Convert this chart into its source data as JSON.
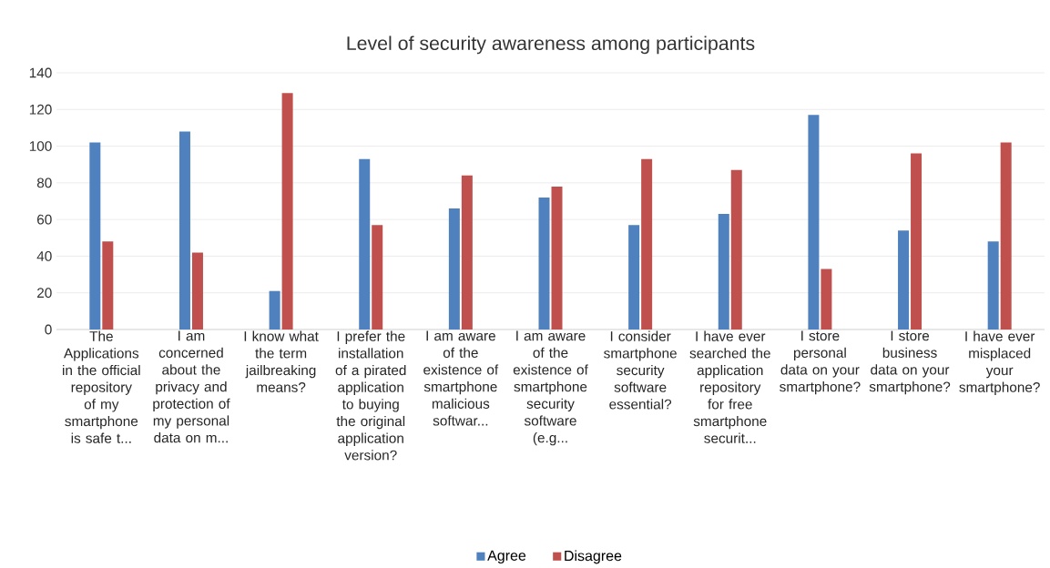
{
  "chart_data": {
    "type": "bar",
    "title": "Level of security awareness among participants",
    "categories": [
      "The Applications in the official repository of my smartphone is safe t...",
      "I am concerned about the privacy and protection of my personal data on m...",
      "I know what the term jailbreaking means?",
      "I prefer the installation of a pirated application to buying the original application version?",
      "I am aware of the existence of smartphone malicious softwar...",
      "I am aware of the existence of smartphone security software (e.g...",
      "I consider smartphone security software essential?",
      "I have ever searched the application repository for free smartphone securit...",
      "I store personal data on your smartphone?",
      "I store business data on your smartphone?",
      "I have ever misplaced your smartphone?"
    ],
    "series": [
      {
        "name": "Agree",
        "color": "#4e81bd",
        "values": [
          102,
          108,
          21,
          93,
          66,
          72,
          57,
          63,
          117,
          54,
          48
        ]
      },
      {
        "name": "Disagree",
        "color": "#c0504d",
        "values": [
          48,
          42,
          129,
          57,
          84,
          78,
          93,
          87,
          33,
          96,
          102
        ]
      }
    ],
    "ylim": [
      0,
      140
    ],
    "yticks": [
      0,
      20,
      40,
      60,
      80,
      100,
      120,
      140
    ],
    "grid": "y",
    "legend": "bottom"
  }
}
